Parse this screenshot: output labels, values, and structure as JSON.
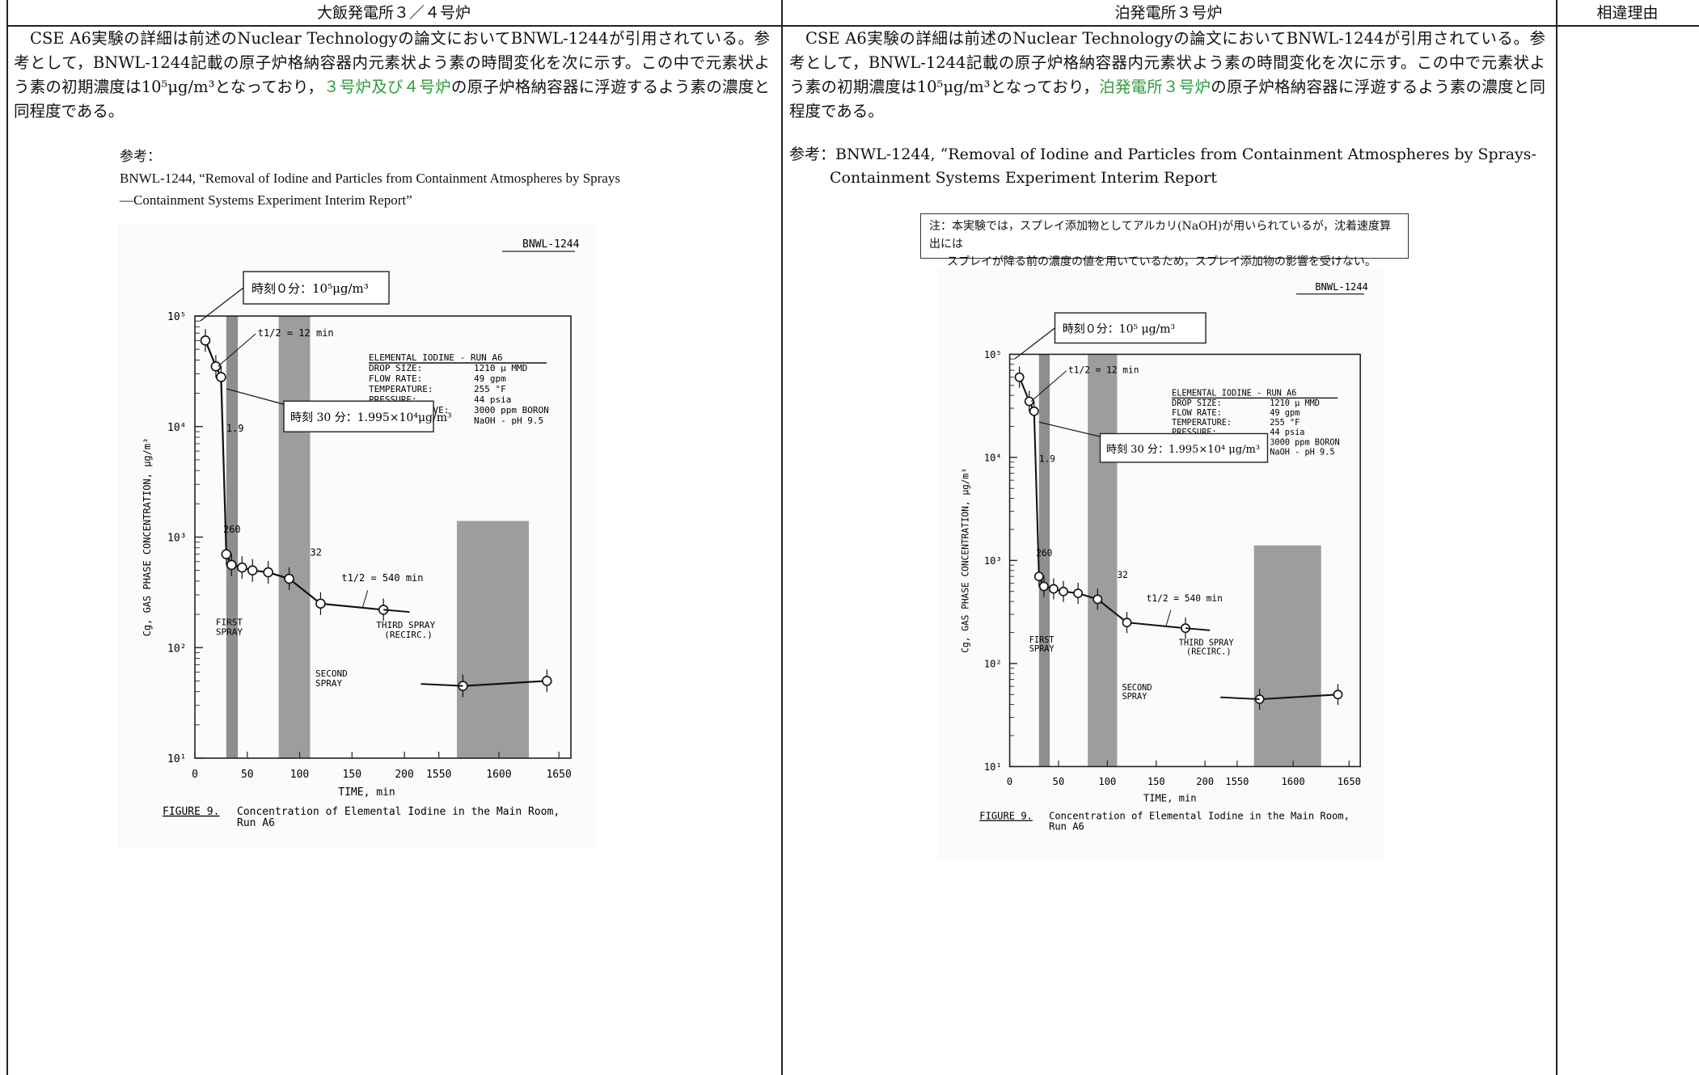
{
  "header": {
    "col1": "大飯発電所３／４号炉",
    "col2": "泊発電所３号炉",
    "col3": "相違理由"
  },
  "left": {
    "para_a": "　CSE A6実験の詳細は前述のNuclear Technologyの論文においてBNWL-1244が引用されている。参考として，BNWL-1244記載の原子炉格納容器内元素状よう素の時間変化を次に示す。この中で元素状よう素の初期濃度は10⁵μg/m³となっており，",
    "para_highlight": "３号炉及び４号炉",
    "para_b": "の原子炉格納容器に浮遊するよう素の濃度と同程度である。",
    "ref_label": "参考：",
    "ref_text": "BNWL-1244, “Removal of Iodine and Particles from Containment Atmospheres by Sprays—Containment Systems Experiment Interim Report”"
  },
  "right": {
    "para_a": "　CSE A6実験の詳細は前述のNuclear Technologyの論文においてBNWL-1244が引用されている。参考として，BNWL-1244記載の原子炉格納容器内元素状よう素の時間変化を次に示す。この中で元素状よう素の初期濃度は10⁵μg/m³となっており，",
    "para_highlight": "泊発電所３号炉",
    "para_b": "の原子炉格納容器に浮遊するよう素の濃度と同程度である。",
    "ref_line1": "参考：BNWL-1244, “Removal of Iodine and Particles from Containment Atmospheres by Sprays-",
    "ref_line2": "Containment Systems Experiment Interim Report",
    "note_line1": "注：本実験では，スプレイ添加物としてアルカリ(NaOH)が用いられているが，沈着速度算出には",
    "note_line2": "スプレイが降る前の濃度の値を用いているため，スプレイ添加物の影響を受けない。"
  },
  "figure": {
    "doc_id": "BNWL-1244",
    "callout_0": "時刻０分：10⁵μg/m³",
    "callout_30": "時刻 30 分：1.995×10⁴μg/m³",
    "callout_0_r": "時刻０分：10⁵ μg/m³",
    "callout_30_r": "時刻 30 分：1.995×10⁴ μg/m³",
    "legend": [
      "ELEMENTAL IODINE - RUN A6",
      "DROP SIZE:",
      "FLOW RATE:",
      "TEMPERATURE:",
      "PRESSURE:",
      "SPRAY ADDITIVE:"
    ],
    "legend_vals": [
      "",
      "1210 μ MMD",
      "49 gpm",
      "255 °F",
      "44 psia",
      "3000 ppm BORON"
    ],
    "legend_extra": "NaOH - pH 9.5",
    "ylabel": "Cg, GAS PHASE CONCENTRATION, μg/m³",
    "xlabel": "TIME, min",
    "caption_label": "FIGURE 9.",
    "caption_text": "Concentration of Elemental Iodine in the Main Room,",
    "caption_text2": "Run A6",
    "ann_t12a": "t1/2 = 12 min",
    "ann_t12b": "t1/2 = 540 min",
    "ann_19": "1.9",
    "ann_260": "260",
    "ann_32": "32",
    "first_spray": [
      "FIRST",
      "SPRAY"
    ],
    "second_spray": [
      "SECOND",
      "SPRAY"
    ],
    "third_spray": [
      "THIRD SPRAY",
      "(RECIRC.)"
    ]
  },
  "chart_data": {
    "type": "scatter",
    "title": "FIGURE 9. Concentration of Elemental Iodine in the Main Room, Run A6",
    "xlabel": "TIME, min",
    "ylabel": "Cg, GAS PHASE CONCENTRATION, μg/m³",
    "y_scale": "log",
    "ylim": [
      10,
      100000
    ],
    "x_ticks": [
      "0",
      "50",
      "100",
      "150",
      "200",
      "1550",
      "1600",
      "1650"
    ],
    "y_ticks": [
      "10¹",
      "10²",
      "10³",
      "10⁴",
      "10⁵"
    ],
    "series": [
      {
        "x": [
          10,
          20,
          25,
          30,
          35,
          45,
          55,
          70,
          90,
          120,
          180
        ],
        "y": [
          60000,
          35000,
          28000,
          700,
          560,
          530,
          500,
          480,
          420,
          250,
          220
        ]
      },
      {
        "x": [
          1570,
          1640
        ],
        "y": [
          45,
          50
        ]
      }
    ],
    "spray_periods": [
      {
        "label": "FIRST SPRAY",
        "x": [
          30,
          41
        ]
      },
      {
        "label": "SECOND SPRAY",
        "x": [
          80,
          110
        ]
      },
      {
        "label": "THIRD SPRAY (RECIRC.)",
        "x": [
          1565,
          1625
        ]
      }
    ]
  }
}
